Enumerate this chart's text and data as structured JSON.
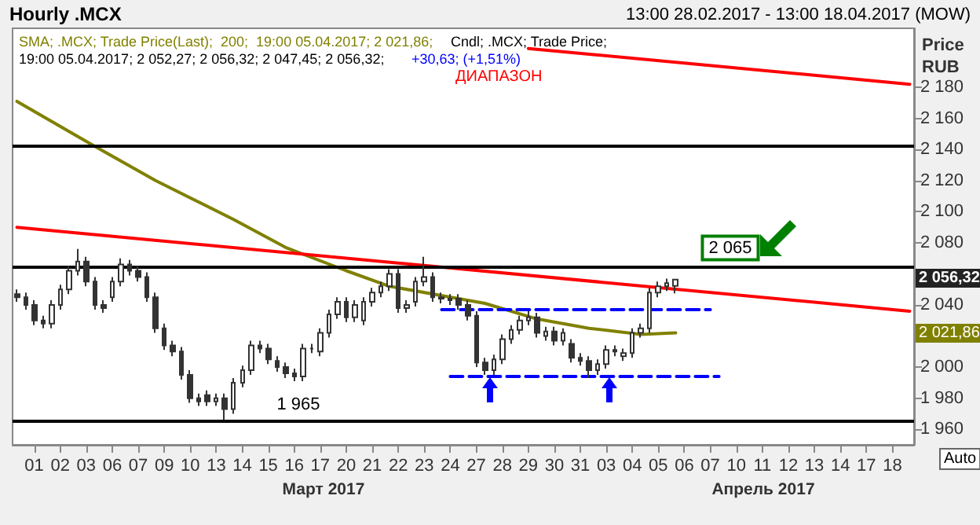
{
  "chart_data": {
    "type": "candlestick",
    "title": "Hourly .MCX",
    "subtitle": "13:00 28.02.2017 - 13:00 18.04.2017 (MOW)",
    "ylabel": "Price RUB",
    "color": "#333333",
    "categories": [
      null,
      null,
      "01",
      null,
      null,
      "02",
      null,
      null,
      "03",
      null,
      null,
      "06",
      null,
      null,
      "07",
      null,
      null,
      "09",
      null,
      null,
      "10",
      null,
      null,
      "13",
      null,
      null,
      "14",
      null,
      null,
      "15",
      null,
      null,
      "16",
      null,
      null,
      "17",
      null,
      null,
      "20",
      null,
      null,
      "21",
      null,
      null,
      "22",
      null,
      null,
      "23",
      null,
      null,
      "24",
      null,
      null,
      "27",
      null,
      null,
      "28",
      null,
      null,
      "29",
      null,
      null,
      "30",
      null,
      null,
      "31",
      null,
      null,
      "03",
      null,
      null,
      "04",
      null,
      null,
      "05",
      null,
      null,
      "06",
      null,
      null,
      "07",
      null,
      null,
      "10",
      null,
      null,
      "11",
      null,
      null,
      "12",
      null,
      null,
      "13",
      null,
      null,
      "14",
      null,
      null,
      "17",
      null,
      null,
      "18",
      null,
      null
    ],
    "ohlc": [
      [
        2047,
        2050,
        2042,
        2045
      ],
      [
        2045,
        2048,
        2037,
        2040
      ],
      [
        2040,
        2043,
        2027,
        2030
      ],
      [
        2030,
        2033,
        2025,
        2028
      ],
      [
        2028,
        2043,
        2025,
        2040
      ],
      [
        2040,
        2053,
        2037,
        2050
      ],
      [
        2050,
        2065,
        2047,
        2062
      ],
      [
        2062,
        2076,
        2059,
        2068
      ],
      [
        2068,
        2071,
        2052,
        2055
      ],
      [
        2055,
        2058,
        2037,
        2040
      ],
      [
        2040,
        2043,
        2035,
        2038
      ],
      [
        2045,
        2058,
        2042,
        2055
      ],
      [
        2055,
        2070,
        2052,
        2066
      ],
      [
        2066,
        2069,
        2059,
        2062
      ],
      [
        2062,
        2065,
        2055,
        2058
      ],
      [
        2058,
        2061,
        2042,
        2045
      ],
      [
        2045,
        2048,
        2022,
        2025
      ],
      [
        2025,
        2028,
        2011,
        2014
      ],
      [
        2014,
        2017,
        2007,
        2010
      ],
      [
        2010,
        2013,
        1992,
        1995
      ],
      [
        1995,
        1998,
        1977,
        1980
      ],
      [
        1980,
        1983,
        1975,
        1978
      ],
      [
        1982,
        1985,
        1975,
        1978
      ],
      [
        1978,
        1983,
        1975,
        1980
      ],
      [
        1980,
        1983,
        1966,
        1973
      ],
      [
        1973,
        1993,
        1970,
        1990
      ],
      [
        1990,
        2001,
        1987,
        1998
      ],
      [
        1998,
        2017,
        1995,
        2014
      ],
      [
        2014,
        2017,
        2009,
        2012
      ],
      [
        2012,
        2015,
        2002,
        2005
      ],
      [
        2004,
        2007,
        1997,
        2000
      ],
      [
        2000,
        2003,
        1993,
        1996
      ],
      [
        1996,
        1999,
        1991,
        1994
      ],
      [
        1994,
        2015,
        1991,
        2012
      ],
      [
        2012,
        2015,
        2009,
        2012
      ],
      [
        2010,
        2025,
        2007,
        2022
      ],
      [
        2022,
        2037,
        2019,
        2034
      ],
      [
        2034,
        2045,
        2031,
        2042
      ],
      [
        2042,
        2045,
        2029,
        2032
      ],
      [
        2032,
        2043,
        2029,
        2040
      ],
      [
        2030,
        2045,
        2027,
        2042
      ],
      [
        2042,
        2051,
        2039,
        2048
      ],
      [
        2048,
        2055,
        2045,
        2052
      ],
      [
        2052,
        2063,
        2049,
        2060
      ],
      [
        2060,
        2063,
        2035,
        2038
      ],
      [
        2038,
        2043,
        2035,
        2040
      ],
      [
        2042,
        2058,
        2039,
        2055
      ],
      [
        2055,
        2071,
        2052,
        2058
      ],
      [
        2058,
        2061,
        2042,
        2045
      ],
      [
        2045,
        2048,
        2041,
        2044
      ],
      [
        2043,
        2047,
        2040,
        2044
      ],
      [
        2044,
        2047,
        2037,
        2040
      ],
      [
        2040,
        2043,
        2030,
        2033
      ],
      [
        2033,
        2036,
        2000,
        2003
      ],
      [
        2003,
        2006,
        1995,
        1998
      ],
      [
        1998,
        2008,
        1995,
        2005
      ],
      [
        2005,
        2021,
        2002,
        2018
      ],
      [
        2018,
        2027,
        2015,
        2024
      ],
      [
        2024,
        2033,
        2021,
        2030
      ],
      [
        2030,
        2036,
        2027,
        2032
      ],
      [
        2032,
        2035,
        2019,
        2022
      ],
      [
        2020,
        2026,
        2017,
        2023
      ],
      [
        2023,
        2026,
        2014,
        2017
      ],
      [
        2017,
        2025,
        2014,
        2022
      ],
      [
        2015,
        2018,
        2003,
        2006
      ],
      [
        2006,
        2009,
        2001,
        2004
      ],
      [
        2004,
        2007,
        1993,
        1998
      ],
      [
        1998,
        2005,
        1995,
        2002
      ],
      [
        2002,
        2014,
        1999,
        2011
      ],
      [
        2011,
        2014,
        2007,
        2010
      ],
      [
        2007,
        2012,
        2004,
        2009
      ],
      [
        2009,
        2025,
        2006,
        2022
      ],
      [
        2022,
        2028,
        2019,
        2025
      ],
      [
        2025,
        2051,
        2022,
        2048
      ],
      [
        2048,
        2055,
        2045,
        2052
      ],
      [
        2052,
        2057,
        2049,
        2054
      ],
      [
        2052.27,
        2056.32,
        2047.45,
        2056.32
      ],
      null,
      null,
      null,
      null,
      null,
      null,
      null,
      null,
      null,
      null,
      null,
      null,
      null,
      null,
      null,
      null,
      null,
      null,
      null,
      null,
      null,
      null,
      null,
      null,
      null,
      null,
      null
    ],
    "series": [
      {
        "type": "line",
        "color": "#808000",
        "values": [
          2171,
          null,
          null,
          null,
          null,
          null,
          null,
          null,
          null,
          2142,
          null,
          null,
          null,
          null,
          null,
          null,
          2120,
          null,
          null,
          null,
          null,
          null,
          null,
          null,
          null,
          2095,
          null,
          null,
          null,
          null,
          null,
          2077,
          null,
          null,
          null,
          null,
          null,
          null,
          2062,
          null,
          null,
          null,
          null,
          2052,
          null,
          null,
          null,
          null,
          null,
          null,
          null,
          null,
          null,
          null,
          2041,
          null,
          null,
          null,
          null,
          null,
          2031,
          null,
          null,
          null,
          null,
          null,
          2025,
          null,
          null,
          null,
          null,
          null,
          2021,
          null,
          null,
          null,
          2022,
          null,
          null,
          null,
          null,
          null,
          null,
          null,
          null,
          null,
          null,
          null,
          null,
          null,
          null,
          null,
          null,
          null,
          null,
          null,
          null,
          null,
          null,
          null,
          null,
          null,
          null,
          null
        ]
      },
      {
        "type": "line",
        "color": "#ff0000",
        "values": [
          null,
          null,
          null,
          null,
          null,
          null,
          null,
          null,
          null,
          null,
          null,
          null,
          null,
          null,
          null,
          null,
          null,
          null,
          null,
          null,
          null,
          null,
          null,
          null,
          null,
          null,
          null,
          null,
          null,
          null,
          null,
          null,
          null,
          null,
          null,
          null,
          null,
          null,
          null,
          null,
          null,
          null,
          null,
          null,
          null,
          null,
          null,
          null,
          null,
          null,
          null,
          null,
          null,
          null,
          null,
          null,
          null,
          null,
          null,
          2205,
          null,
          null,
          null,
          null,
          null,
          null,
          null,
          null,
          null,
          null,
          null,
          null,
          null,
          null,
          null,
          null,
          null,
          null,
          null,
          null,
          null,
          null,
          null,
          null,
          null,
          null,
          null,
          null,
          null,
          null,
          null,
          null,
          null,
          null,
          null,
          null,
          null,
          null,
          null,
          null,
          null,
          null,
          null,
          2182
        ]
      },
      {
        "type": "line",
        "color": "#ff0000",
        "values": [
          2090,
          null,
          null,
          null,
          null,
          null,
          null,
          null,
          null,
          null,
          null,
          null,
          null,
          null,
          null,
          null,
          null,
          null,
          null,
          null,
          null,
          null,
          null,
          null,
          null,
          null,
          null,
          null,
          null,
          null,
          null,
          null,
          null,
          null,
          null,
          null,
          null,
          null,
          null,
          null,
          null,
          null,
          null,
          null,
          null,
          null,
          null,
          null,
          null,
          null,
          null,
          null,
          null,
          null,
          null,
          null,
          null,
          null,
          null,
          null,
          null,
          null,
          null,
          null,
          null,
          null,
          null,
          null,
          null,
          null,
          null,
          null,
          null,
          null,
          null,
          null,
          null,
          null,
          null,
          null,
          null,
          null,
          null,
          null,
          null,
          null,
          null,
          null,
          null,
          null,
          null,
          null,
          null,
          null,
          null,
          null,
          null,
          null,
          null,
          null,
          null,
          null,
          null,
          2036
        ]
      },
      {
        "type": "line",
        "color": "#0000ff",
        "line_style": "dashed",
        "values": [
          null,
          null,
          null,
          null,
          null,
          null,
          null,
          null,
          null,
          null,
          null,
          null,
          null,
          null,
          null,
          null,
          null,
          null,
          null,
          null,
          null,
          null,
          null,
          null,
          null,
          null,
          null,
          null,
          null,
          null,
          null,
          null,
          null,
          null,
          null,
          null,
          null,
          null,
          null,
          null,
          null,
          null,
          null,
          null,
          null,
          null,
          null,
          null,
          null,
          2037,
          null,
          null,
          null,
          null,
          null,
          null,
          null,
          null,
          null,
          null,
          null,
          null,
          null,
          null,
          null,
          null,
          null,
          null,
          null,
          null,
          null,
          null,
          null,
          null,
          null,
          null,
          null,
          null,
          null,
          null,
          2037,
          null,
          null,
          null,
          null,
          null,
          null,
          null,
          null,
          null,
          null,
          null,
          null,
          null,
          null,
          null,
          null,
          null,
          null,
          null,
          null,
          null,
          null,
          null
        ]
      },
      {
        "type": "line",
        "color": "#0000ff",
        "line_style": "dashed",
        "values": [
          null,
          null,
          null,
          null,
          null,
          null,
          null,
          null,
          null,
          null,
          null,
          null,
          null,
          null,
          null,
          null,
          null,
          null,
          null,
          null,
          null,
          null,
          null,
          null,
          null,
          null,
          null,
          null,
          null,
          null,
          null,
          null,
          null,
          null,
          null,
          null,
          null,
          null,
          null,
          null,
          null,
          null,
          null,
          null,
          null,
          null,
          null,
          null,
          null,
          null,
          1994,
          null,
          null,
          null,
          null,
          null,
          null,
          null,
          null,
          null,
          null,
          null,
          null,
          null,
          null,
          null,
          null,
          null,
          null,
          null,
          null,
          null,
          null,
          null,
          null,
          null,
          null,
          null,
          null,
          null,
          null,
          1994,
          null,
          null,
          null,
          null,
          null,
          null,
          null,
          null,
          null,
          null,
          null,
          null,
          null,
          null,
          null,
          null,
          null,
          null,
          null,
          null,
          null,
          null
        ]
      }
    ],
    "ref_lines": [
      {
        "axis": "y",
        "value": 2142,
        "color": "#000000"
      },
      {
        "axis": "y",
        "value": 2065,
        "label": "2 065",
        "color": "#000000"
      },
      {
        "axis": "y",
        "value": 1965,
        "label": "1 965",
        "color": "#000000"
      }
    ],
    "annotations": [
      "SMA; .MCX; Trade Price(Last);  200;  19:00 05.04.2017; 2 021,86;",
      "Cndl; .MCX; Trade Price;",
      "19:00 05.04.2017; 2 052,27; 2 056,32; 2 047,45; 2 056,32;",
      "+30,63; (+1,51%)",
      "ДИАПАЗОН",
      "Март 2017",
      "Апрель 2017",
      "Auto",
      "2 056,32",
      "2 021,86"
    ],
    "ylim": [
      1950,
      2218
    ],
    "yticks": [
      {
        "value": 1960,
        "label": "1 960"
      },
      {
        "value": 1980,
        "label": "1 980"
      },
      {
        "value": 2000,
        "label": "2 000"
      },
      {
        "value": 2020,
        "label": null
      },
      {
        "value": 2040,
        "label": "2 040"
      },
      {
        "value": 2060,
        "label": null
      },
      {
        "value": 2080,
        "label": "2 080"
      },
      {
        "value": 2100,
        "label": "2 100"
      },
      {
        "value": 2120,
        "label": "2 120"
      },
      {
        "value": 2140,
        "label": "2 140"
      },
      {
        "value": 2160,
        "label": "2 160"
      },
      {
        "value": 2180,
        "label": "2 180"
      }
    ],
    "grid": false,
    "marker": "none"
  }
}
